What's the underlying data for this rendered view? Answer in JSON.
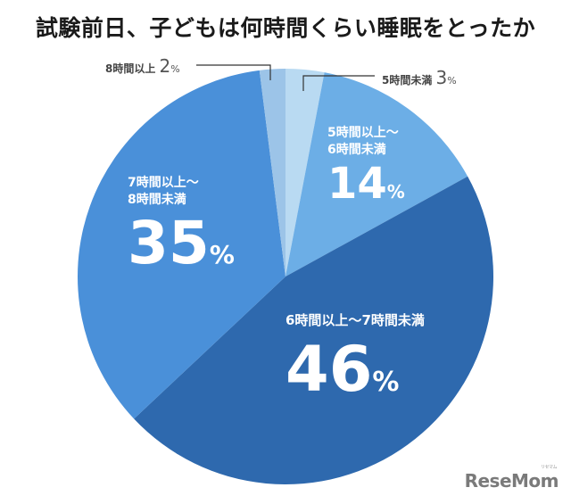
{
  "chart_data": {
    "type": "pie",
    "title": "試験前日、子どもは何時間くらい睡眠をとったか",
    "start_angle_deg": 0,
    "direction": "clockwise",
    "categories": [
      "5時間未満",
      "5時間以上〜6時間未満",
      "6時間以上〜7時間未満",
      "7時間以上〜8時間未満",
      "8時間以上"
    ],
    "values": [
      3,
      14,
      46,
      35,
      2
    ],
    "unit": "%",
    "colors": [
      "#B9DAF2",
      "#6CAEE6",
      "#2E69AE",
      "#4A90D9",
      "#9CC4E8"
    ]
  },
  "title": "試験前日、子どもは何時間くらい睡眠をとったか",
  "labels": {
    "under5": {
      "cat": "5時間未満",
      "val": "3",
      "pct": "%"
    },
    "h5to6": {
      "cat1": "5時間以上〜",
      "cat2": "6時間未満",
      "val": "14",
      "pct": "%"
    },
    "h6to7": {
      "cat": "6時間以上〜7時間未満",
      "val": "46",
      "pct": "%"
    },
    "h7to8": {
      "cat1": "7時間以上〜",
      "cat2": "8時間未満",
      "val": "35",
      "pct": "%"
    },
    "over8": {
      "cat": "8時間以上",
      "val": "2",
      "pct": "%"
    }
  },
  "logo": {
    "text": "ReseMom",
    "ruby": "リセマム"
  }
}
